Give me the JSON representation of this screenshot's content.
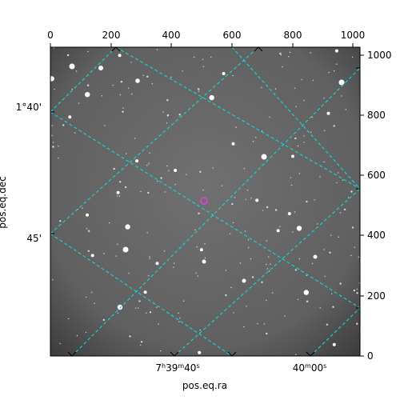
{
  "axes": {
    "xlabel": "pos.eq.ra",
    "ylabel": "pos.eq.dec",
    "top_ticks": [
      "0",
      "200",
      "400",
      "600",
      "800",
      "1000"
    ],
    "right_ticks": [
      "0",
      "200",
      "400",
      "600",
      "800",
      "1000"
    ],
    "ra_ticks": [
      {
        "hours": "7",
        "minutes": "39",
        "seconds": "40",
        "text": "7h39m40s"
      },
      {
        "hours": "",
        "minutes": "40",
        "seconds": "00",
        "text": "40m00s"
      }
    ],
    "dec_ticks": [
      "1°40'",
      "45'"
    ]
  },
  "colors": {
    "grid": "#00e5e5",
    "marker": "#e040e0",
    "background": "#6a6a6a"
  }
}
